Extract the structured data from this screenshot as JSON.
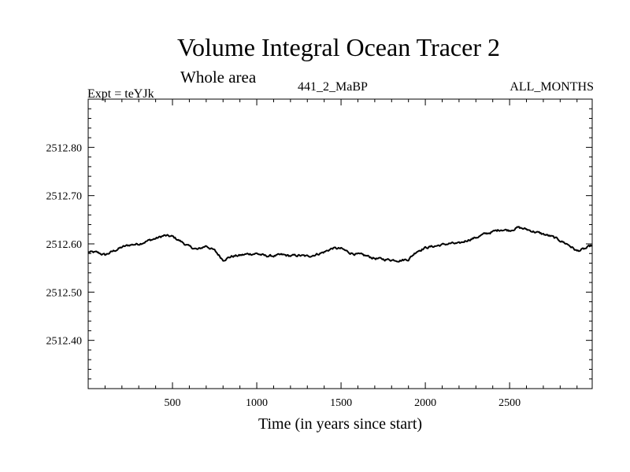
{
  "header": {
    "title": "Volume Integral Ocean Tracer 2",
    "subtitle": "Whole area",
    "expt": "Expt = teYJk",
    "run": "441_2_MaBP",
    "months": "ALL_MONTHS"
  },
  "chart_data": {
    "type": "line",
    "title": "Volume Integral Ocean Tracer 2",
    "subtitle": "Whole area",
    "xlabel": "Time (in years since start)",
    "ylabel": "",
    "xlim": [
      0,
      2990
    ],
    "ylim": [
      2512.3,
      2512.9
    ],
    "x_ticks": [
      500,
      1000,
      1500,
      2000,
      2500
    ],
    "x_tick_labels": [
      "500",
      "1000",
      "1500",
      "2000",
      "2500"
    ],
    "y_ticks": [
      2512.4,
      2512.5,
      2512.6,
      2512.7,
      2512.8
    ],
    "y_tick_labels": [
      "2512.40",
      "2512.50",
      "2512.60",
      "2512.70",
      "2512.80"
    ],
    "grid": false,
    "series": [
      {
        "color": "#000000",
        "x": [
          0,
          50,
          100,
          150,
          200,
          250,
          300,
          350,
          400,
          450,
          500,
          550,
          600,
          650,
          700,
          750,
          800,
          850,
          900,
          950,
          1000,
          1050,
          1100,
          1150,
          1200,
          1250,
          1300,
          1350,
          1400,
          1450,
          1500,
          1550,
          1600,
          1650,
          1700,
          1750,
          1800,
          1850,
          1900,
          1950,
          2000,
          2050,
          2100,
          2150,
          2200,
          2250,
          2300,
          2350,
          2400,
          2450,
          2500,
          2550,
          2600,
          2650,
          2700,
          2750,
          2800,
          2850,
          2900,
          2950,
          2990
        ],
        "values": [
          2512.583,
          2512.582,
          2512.577,
          2512.585,
          2512.593,
          2512.598,
          2512.6,
          2512.606,
          2512.611,
          2512.617,
          2512.615,
          2512.605,
          2512.594,
          2512.588,
          2512.596,
          2512.586,
          2512.567,
          2512.574,
          2512.576,
          2512.579,
          2512.58,
          2512.575,
          2512.575,
          2512.577,
          2512.575,
          2512.576,
          2512.574,
          2512.578,
          2512.583,
          2512.591,
          2512.59,
          2512.582,
          2512.578,
          2512.575,
          2512.57,
          2512.568,
          2512.567,
          2512.566,
          2512.568,
          2512.585,
          2512.592,
          2512.595,
          2512.598,
          2512.601,
          2512.6,
          2512.608,
          2512.613,
          2512.62,
          2512.625,
          2512.63,
          2512.628,
          2512.634,
          2512.63,
          2512.625,
          2512.62,
          2512.615,
          2512.607,
          2512.598,
          2512.585,
          2512.59,
          2512.597
        ]
      }
    ]
  }
}
